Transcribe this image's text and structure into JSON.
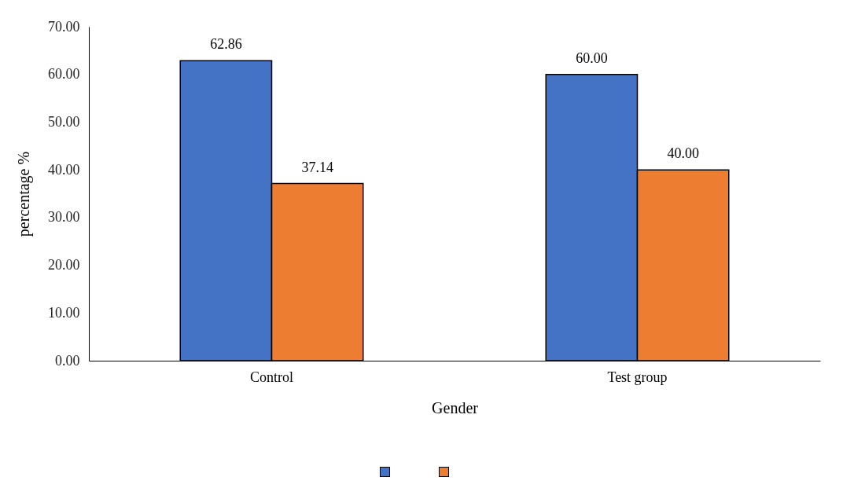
{
  "chart_data": {
    "type": "bar",
    "ylabel": "percentage %",
    "xlabel": "Gender",
    "categories": [
      "Control",
      "Test group"
    ],
    "series": [
      {
        "color": "#4472c4",
        "values": [
          62.86,
          60.0
        ],
        "value_labels": [
          "62.86",
          "60.00"
        ]
      },
      {
        "color": "#ed7d31",
        "values": [
          37.14,
          40.0
        ],
        "value_labels": [
          "37.14",
          "40.00"
        ]
      }
    ],
    "ylim": [
      0,
      70
    ],
    "yticks": [
      {
        "value": 0,
        "label": "0.00"
      },
      {
        "value": 10,
        "label": "10.00"
      },
      {
        "value": 20,
        "label": "20.00"
      },
      {
        "value": 30,
        "label": "30.00"
      },
      {
        "value": 40,
        "label": "40.00"
      },
      {
        "value": 50,
        "label": "50.00"
      },
      {
        "value": 60,
        "label": "60.00"
      },
      {
        "value": 70,
        "label": "70.00"
      }
    ],
    "grid": false
  }
}
